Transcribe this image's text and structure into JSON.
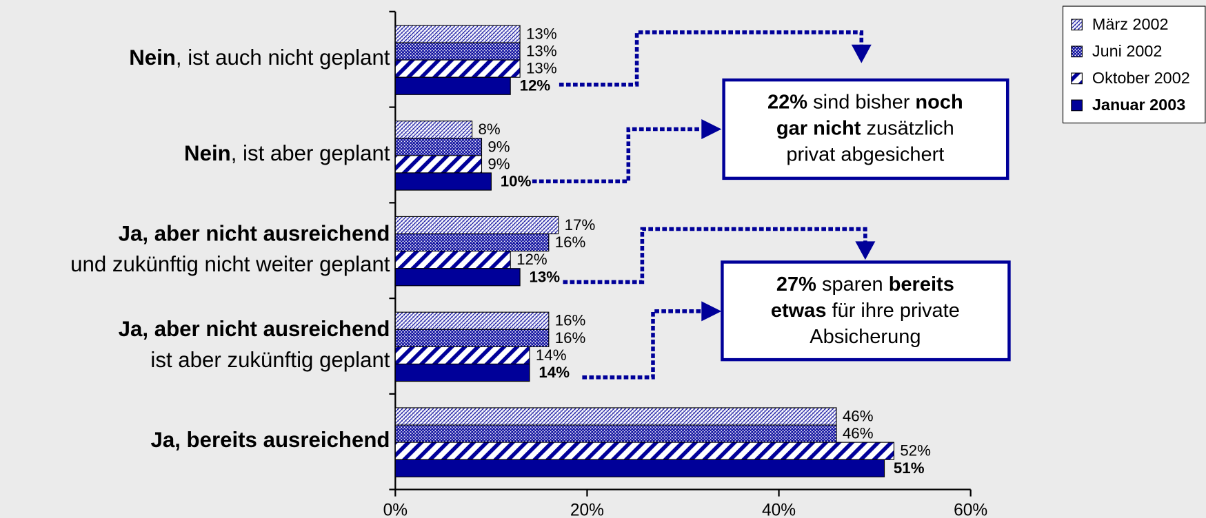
{
  "chart_data": {
    "type": "bar",
    "orientation": "horizontal",
    "categories": [
      [
        [
          {
            "text": "Nein",
            "bold": true
          },
          {
            "text": ", ist auch nicht geplant"
          }
        ]
      ],
      [
        [
          {
            "text": "Nein",
            "bold": true
          },
          {
            "text": ", ist aber geplant"
          }
        ]
      ],
      [
        [
          {
            "text": "Ja, aber nicht ausreichend",
            "bold": true
          }
        ],
        [
          {
            "text": "und zukünftig nicht weiter geplant"
          }
        ]
      ],
      [
        [
          {
            "text": "Ja, aber nicht ausreichend",
            "bold": true
          }
        ],
        [
          {
            "text": "ist aber zukünftig geplant"
          }
        ]
      ],
      [
        [
          {
            "text": "Ja, bereits ausreichend",
            "bold": true
          }
        ]
      ]
    ],
    "series": [
      {
        "name": "März 2002",
        "color": "#000099",
        "pattern": "light-hatch",
        "values": [
          13,
          8,
          17,
          16,
          46
        ],
        "value_labels": [
          "13%",
          "8%",
          "17%",
          "16%",
          "46%"
        ]
      },
      {
        "name": "Juni 2002",
        "color": "#000099",
        "pattern": "cross-hatch",
        "values": [
          13,
          9,
          16,
          16,
          46
        ],
        "value_labels": [
          "13%",
          "9%",
          "16%",
          "16%",
          "46%"
        ]
      },
      {
        "name": "Oktober 2002",
        "color": "#000099",
        "pattern": "stripes",
        "values": [
          13,
          9,
          12,
          14,
          52
        ],
        "value_labels": [
          "13%",
          "9%",
          "12%",
          "14%",
          "52%"
        ]
      },
      {
        "name": "Januar 2003",
        "color": "#000099",
        "pattern": "solid",
        "bold": true,
        "values": [
          12,
          10,
          13,
          14,
          51
        ],
        "value_labels": [
          "12%",
          "10%",
          "13%",
          "14%",
          "51%"
        ]
      }
    ],
    "xlim": [
      0,
      60
    ],
    "xticks": [
      {
        "value": 0,
        "label": "0%"
      },
      {
        "value": 20,
        "label": "20%"
      },
      {
        "value": 40,
        "label": "40%"
      },
      {
        "value": 60,
        "label": "60%"
      }
    ],
    "legend": "top-right",
    "annotations": [
      {
        "lines": [
          [
            {
              "text": "22%",
              "bold": true
            },
            {
              "text": " sind bisher "
            },
            {
              "text": "noch",
              "bold": true
            }
          ],
          [
            {
              "text": "gar nicht",
              "bold": true
            },
            {
              "text": " zusätzlich"
            }
          ],
          [
            {
              "text": "privat abgesichert"
            }
          ]
        ]
      },
      {
        "lines": [
          [
            {
              "text": "27%",
              "bold": true
            },
            {
              "text": " sparen "
            },
            {
              "text": "bereits",
              "bold": true
            }
          ],
          [
            {
              "text": "etwas",
              "bold": true
            },
            {
              "text": " für ihre private"
            }
          ],
          [
            {
              "text": "Absicherung"
            }
          ]
        ]
      }
    ]
  }
}
